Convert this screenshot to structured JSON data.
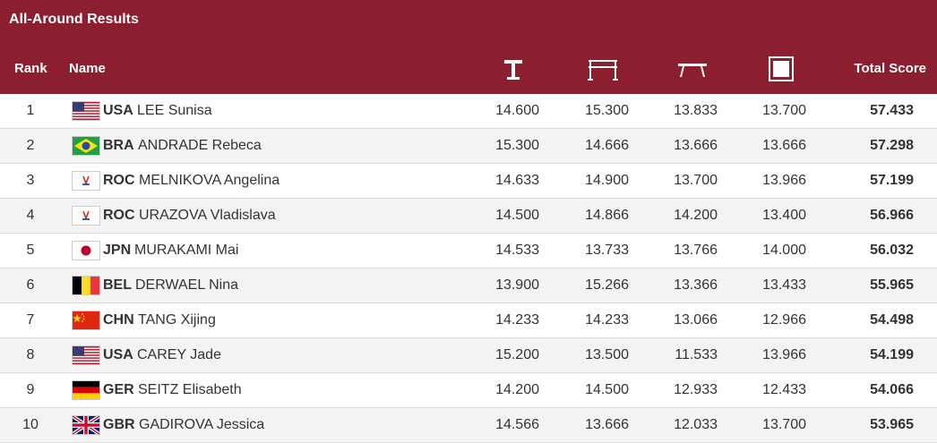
{
  "header": {
    "title": "All-Around Results",
    "columns": {
      "rank": "Rank",
      "name": "Name",
      "vault_icon": "vault-icon",
      "bars_icon": "uneven-bars-icon",
      "beam_icon": "balance-beam-icon",
      "floor_icon": "floor-exercise-icon",
      "total": "Total Score"
    }
  },
  "colors": {
    "header_bg": "#8b1e2f",
    "header_text": "#ffffff"
  },
  "rows": [
    {
      "rank": "1",
      "flag": "usa-flag-icon",
      "noc": "USA",
      "name": "LEE Sunisa",
      "vault": "14.600",
      "bars": "15.300",
      "beam": "13.833",
      "floor": "13.700",
      "total": "57.433"
    },
    {
      "rank": "2",
      "flag": "bra-flag-icon",
      "noc": "BRA",
      "name": "ANDRADE Rebeca",
      "vault": "15.300",
      "bars": "14.666",
      "beam": "13.666",
      "floor": "13.666",
      "total": "57.298"
    },
    {
      "rank": "3",
      "flag": "roc-flag-icon",
      "noc": "ROC",
      "name": "MELNIKOVA Angelina",
      "vault": "14.633",
      "bars": "14.900",
      "beam": "13.700",
      "floor": "13.966",
      "total": "57.199"
    },
    {
      "rank": "4",
      "flag": "roc-flag-icon",
      "noc": "ROC",
      "name": "URAZOVA Vladislava",
      "vault": "14.500",
      "bars": "14.866",
      "beam": "14.200",
      "floor": "13.400",
      "total": "56.966"
    },
    {
      "rank": "5",
      "flag": "jpn-flag-icon",
      "noc": "JPN",
      "name": "MURAKAMI Mai",
      "vault": "14.533",
      "bars": "13.733",
      "beam": "13.766",
      "floor": "14.000",
      "total": "56.032"
    },
    {
      "rank": "6",
      "flag": "bel-flag-icon",
      "noc": "BEL",
      "name": "DERWAEL Nina",
      "vault": "13.900",
      "bars": "15.266",
      "beam": "13.366",
      "floor": "13.433",
      "total": "55.965"
    },
    {
      "rank": "7",
      "flag": "chn-flag-icon",
      "noc": "CHN",
      "name": "TANG Xijing",
      "vault": "14.233",
      "bars": "14.233",
      "beam": "13.066",
      "floor": "12.966",
      "total": "54.498"
    },
    {
      "rank": "8",
      "flag": "usa-flag-icon",
      "noc": "USA",
      "name": "CAREY Jade",
      "vault": "15.200",
      "bars": "13.500",
      "beam": "11.533",
      "floor": "13.966",
      "total": "54.199"
    },
    {
      "rank": "9",
      "flag": "ger-flag-icon",
      "noc": "GER",
      "name": "SEITZ Elisabeth",
      "vault": "14.200",
      "bars": "14.500",
      "beam": "12.933",
      "floor": "12.433",
      "total": "54.066"
    },
    {
      "rank": "10",
      "flag": "gbr-flag-icon",
      "noc": "GBR",
      "name": "GADIROVA Jessica",
      "vault": "14.566",
      "bars": "13.666",
      "beam": "12.033",
      "floor": "13.700",
      "total": "53.965"
    }
  ]
}
